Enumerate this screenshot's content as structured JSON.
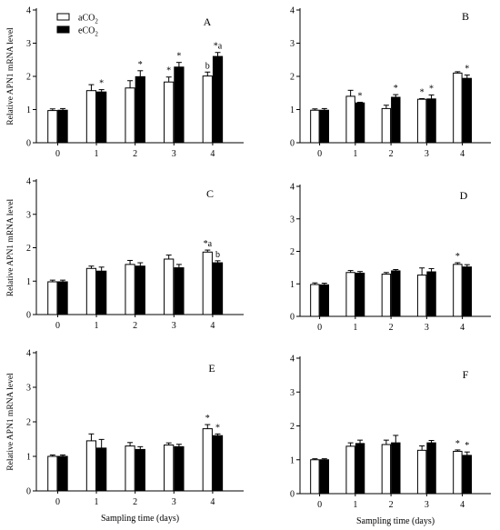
{
  "chart_data": [
    {
      "type": "bar",
      "panel_letter": "A",
      "categories": [
        "0",
        "1",
        "2",
        "3",
        "4"
      ],
      "ylabel": "Relative APN1 mRNA level",
      "xlabel": "",
      "ylim": [
        0,
        4
      ],
      "yticks": [
        "0",
        "1",
        "2",
        "3",
        "4"
      ],
      "legend": {
        "items": [
          {
            "label": "aCO",
            "sub": "2"
          },
          {
            "label": "eCO",
            "sub": "2"
          }
        ],
        "placement": "top-left"
      },
      "series": [
        {
          "name": "aCO2",
          "values": [
            0.97,
            1.57,
            1.65,
            1.83,
            2.01
          ],
          "errors": [
            0.05,
            0.18,
            0.22,
            0.15,
            0.12
          ],
          "labels": [
            "",
            "",
            "",
            "*",
            "b"
          ]
        },
        {
          "name": "eCO2",
          "values": [
            0.98,
            1.53,
            1.99,
            2.28,
            2.6
          ],
          "errors": [
            0.05,
            0.07,
            0.18,
            0.14,
            0.12
          ],
          "labels": [
            "",
            "*",
            "*",
            "*",
            "*a"
          ]
        }
      ]
    },
    {
      "type": "bar",
      "panel_letter": "B",
      "categories": [
        "0",
        "1",
        "2",
        "3",
        "4"
      ],
      "ylabel": "",
      "xlabel": "",
      "ylim": [
        0,
        4
      ],
      "yticks": [
        "0",
        "1",
        "2",
        "3",
        "4"
      ],
      "series": [
        {
          "name": "aCO2",
          "values": [
            0.98,
            1.4,
            1.03,
            1.31,
            2.1
          ],
          "errors": [
            0.04,
            0.18,
            0.1,
            0.02,
            0.04
          ],
          "labels": [
            "",
            "",
            "",
            "*",
            ""
          ]
        },
        {
          "name": "eCO2",
          "values": [
            0.98,
            1.2,
            1.37,
            1.32,
            1.94
          ],
          "errors": [
            0.05,
            0.02,
            0.08,
            0.12,
            0.1
          ],
          "labels": [
            "",
            "*",
            "*",
            "*",
            "*"
          ]
        }
      ]
    },
    {
      "type": "bar",
      "panel_letter": "C",
      "categories": [
        "0",
        "1",
        "2",
        "3",
        "4"
      ],
      "ylabel": "Relative APN1 mRNA level",
      "xlabel": "",
      "ylim": [
        0,
        4
      ],
      "yticks": [
        "0",
        "1",
        "2",
        "3",
        "4"
      ],
      "series": [
        {
          "name": "aCO2",
          "values": [
            0.98,
            1.38,
            1.5,
            1.66,
            1.87
          ],
          "errors": [
            0.05,
            0.07,
            0.12,
            0.12,
            0.06
          ],
          "labels": [
            "",
            "",
            "",
            "",
            "*a"
          ]
        },
        {
          "name": "eCO2",
          "values": [
            0.98,
            1.3,
            1.45,
            1.4,
            1.55
          ],
          "errors": [
            0.05,
            0.12,
            0.1,
            0.1,
            0.06
          ],
          "labels": [
            "",
            "",
            "",
            "",
            "b"
          ]
        }
      ]
    },
    {
      "type": "bar",
      "panel_letter": "D",
      "categories": [
        "0",
        "1",
        "2",
        "3",
        "4"
      ],
      "ylabel": "",
      "xlabel": "",
      "ylim": [
        0,
        4
      ],
      "yticks": [
        "0",
        "1",
        "2",
        "3",
        "4"
      ],
      "series": [
        {
          "name": "aCO2",
          "values": [
            0.98,
            1.35,
            1.3,
            1.27,
            1.6
          ],
          "errors": [
            0.05,
            0.06,
            0.05,
            0.22,
            0.05
          ],
          "labels": [
            "",
            "",
            "",
            "",
            "*"
          ]
        },
        {
          "name": "eCO2",
          "values": [
            0.97,
            1.33,
            1.4,
            1.37,
            1.52
          ],
          "errors": [
            0.05,
            0.05,
            0.04,
            0.1,
            0.07
          ],
          "labels": [
            "",
            "",
            "",
            "",
            ""
          ]
        }
      ]
    },
    {
      "type": "bar",
      "panel_letter": "E",
      "categories": [
        "0",
        "1",
        "2",
        "3",
        "4"
      ],
      "ylabel": "Relative APN1 mRNA level",
      "xlabel": "Sampling time (days)",
      "ylim": [
        0,
        4
      ],
      "yticks": [
        "0",
        "1",
        "2",
        "3",
        "4"
      ],
      "series": [
        {
          "name": "aCO2",
          "values": [
            1.0,
            1.45,
            1.3,
            1.33,
            1.8
          ],
          "errors": [
            0.04,
            0.2,
            0.1,
            0.06,
            0.12
          ],
          "labels": [
            "",
            "",
            "",
            "",
            "*"
          ]
        },
        {
          "name": "eCO2",
          "values": [
            1.0,
            1.24,
            1.2,
            1.28,
            1.6
          ],
          "errors": [
            0.04,
            0.25,
            0.08,
            0.07,
            0.05
          ],
          "labels": [
            "",
            "",
            "",
            "",
            "*"
          ]
        }
      ]
    },
    {
      "type": "bar",
      "panel_letter": "F",
      "categories": [
        "0",
        "1",
        "2",
        "3",
        "4"
      ],
      "ylabel": "",
      "xlabel": "Sampling time (days)",
      "ylim": [
        0,
        4
      ],
      "yticks": [
        "0",
        "1",
        "2",
        "3",
        "4"
      ],
      "series": [
        {
          "name": "aCO2",
          "values": [
            1.0,
            1.4,
            1.45,
            1.28,
            1.25
          ],
          "errors": [
            0.03,
            0.1,
            0.13,
            0.13,
            0.04
          ],
          "labels": [
            "",
            "",
            "",
            "",
            "*"
          ]
        },
        {
          "name": "eCO2",
          "values": [
            1.0,
            1.48,
            1.5,
            1.5,
            1.13
          ],
          "errors": [
            0.03,
            0.1,
            0.22,
            0.07,
            0.1
          ],
          "labels": [
            "",
            "",
            "",
            "",
            "*"
          ]
        }
      ]
    }
  ]
}
